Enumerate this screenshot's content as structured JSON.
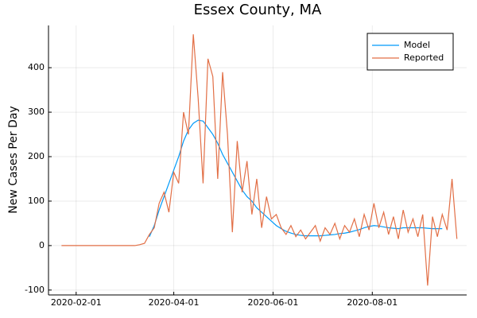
{
  "chart_data": {
    "type": "line",
    "title": "Essex County, MA",
    "y_label": "New Cases Per Day",
    "x": [
      "2020-01-23",
      "2020-01-26",
      "2020-01-29",
      "2020-02-01",
      "2020-02-04",
      "2020-02-07",
      "2020-02-10",
      "2020-02-13",
      "2020-02-16",
      "2020-02-19",
      "2020-02-22",
      "2020-02-25",
      "2020-02-28",
      "2020-03-02",
      "2020-03-05",
      "2020-03-08",
      "2020-03-11",
      "2020-03-14",
      "2020-03-17",
      "2020-03-20",
      "2020-03-23",
      "2020-03-26",
      "2020-03-29",
      "2020-04-01",
      "2020-04-04",
      "2020-04-07",
      "2020-04-10",
      "2020-04-13",
      "2020-04-16",
      "2020-04-19",
      "2020-04-22",
      "2020-04-25",
      "2020-04-28",
      "2020-05-01",
      "2020-05-04",
      "2020-05-07",
      "2020-05-10",
      "2020-05-13",
      "2020-05-16",
      "2020-05-19",
      "2020-05-22",
      "2020-05-25",
      "2020-05-28",
      "2020-05-31",
      "2020-06-03",
      "2020-06-06",
      "2020-06-09",
      "2020-06-12",
      "2020-06-15",
      "2020-06-18",
      "2020-06-21",
      "2020-06-24",
      "2020-06-27",
      "2020-06-30",
      "2020-07-03",
      "2020-07-06",
      "2020-07-09",
      "2020-07-12",
      "2020-07-15",
      "2020-07-18",
      "2020-07-21",
      "2020-07-24",
      "2020-07-27",
      "2020-07-30",
      "2020-08-02",
      "2020-08-05",
      "2020-08-08",
      "2020-08-11",
      "2020-08-14",
      "2020-08-17",
      "2020-08-20",
      "2020-08-23",
      "2020-08-26",
      "2020-08-29",
      "2020-09-01",
      "2020-09-04",
      "2020-09-07",
      "2020-09-10",
      "2020-09-13",
      "2020-09-16",
      "2020-09-19",
      "2020-09-22"
    ],
    "series": [
      {
        "name": "Model",
        "color": "#009af9",
        "values": [
          null,
          null,
          null,
          null,
          null,
          null,
          null,
          null,
          null,
          null,
          null,
          null,
          null,
          null,
          null,
          null,
          null,
          null,
          20,
          45,
          80,
          110,
          140,
          170,
          200,
          235,
          260,
          275,
          282,
          280,
          265,
          250,
          230,
          205,
          185,
          165,
          145,
          125,
          110,
          100,
          85,
          75,
          65,
          55,
          45,
          38,
          32,
          28,
          25,
          23,
          22,
          22,
          22,
          22,
          23,
          24,
          25,
          27,
          28,
          30,
          33,
          36,
          40,
          43,
          45,
          44,
          42,
          40,
          39,
          38,
          40,
          40,
          40,
          40,
          40,
          39,
          38,
          38,
          38,
          null,
          null,
          null
        ]
      },
      {
        "name": "Reported",
        "color": "#e26f46",
        "values": [
          0,
          0,
          0,
          0,
          0,
          0,
          0,
          0,
          0,
          0,
          0,
          0,
          0,
          0,
          0,
          0,
          2,
          5,
          25,
          40,
          95,
          120,
          75,
          165,
          140,
          300,
          250,
          475,
          330,
          140,
          420,
          380,
          150,
          390,
          250,
          30,
          235,
          120,
          190,
          70,
          150,
          40,
          110,
          60,
          70,
          40,
          25,
          45,
          20,
          35,
          15,
          30,
          45,
          10,
          40,
          25,
          50,
          15,
          45,
          30,
          60,
          20,
          70,
          35,
          95,
          40,
          75,
          25,
          65,
          15,
          80,
          30,
          60,
          20,
          70,
          -90,
          65,
          20,
          70,
          35,
          150,
          15
        ]
      }
    ],
    "xlim": [
      "2020-01-15",
      "2020-09-28"
    ],
    "xticks": [
      "2020-02-01",
      "2020-04-01",
      "2020-06-01",
      "2020-08-01"
    ],
    "ylim": [
      -111,
      495
    ],
    "yticks": [
      -100,
      0,
      100,
      200,
      300,
      400
    ],
    "grid": true,
    "legend": "top-right"
  }
}
